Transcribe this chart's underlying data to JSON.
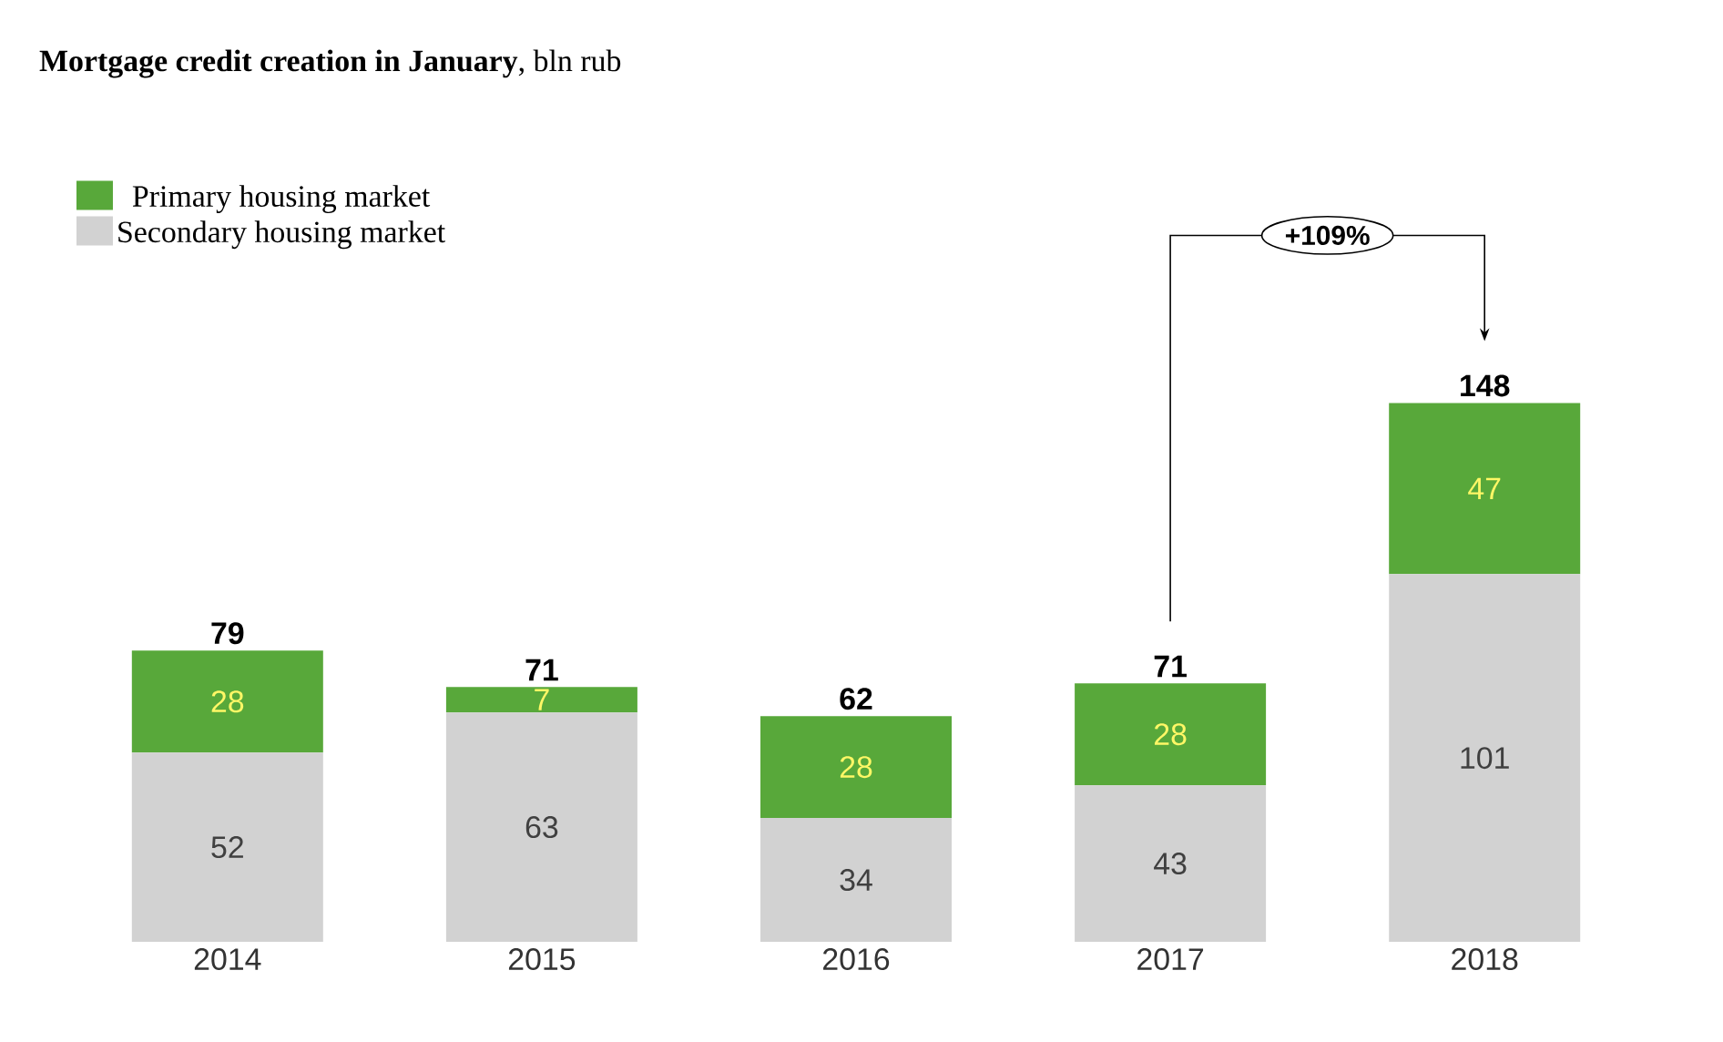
{
  "chart_data": {
    "type": "bar",
    "stacked": true,
    "title": "**Mortgage credit creation in January**, bln rub",
    "categories": [
      "2014",
      "2015",
      "2016",
      "2017",
      "2018"
    ],
    "series": [
      {
        "name": "Secondary housing market",
        "color": "#d2d2d2",
        "values": [
          52,
          63,
          34,
          43,
          101
        ]
      },
      {
        "name": "Primary housing market",
        "color": "#58a83a",
        "values": [
          28,
          7,
          28,
          28,
          47
        ]
      }
    ],
    "data_labels": true,
    "totals": [
      "79",
      "71",
      "62",
      "71",
      "148"
    ],
    "annotations": [
      "+109%"
    ],
    "legend": "top left"
  }
}
